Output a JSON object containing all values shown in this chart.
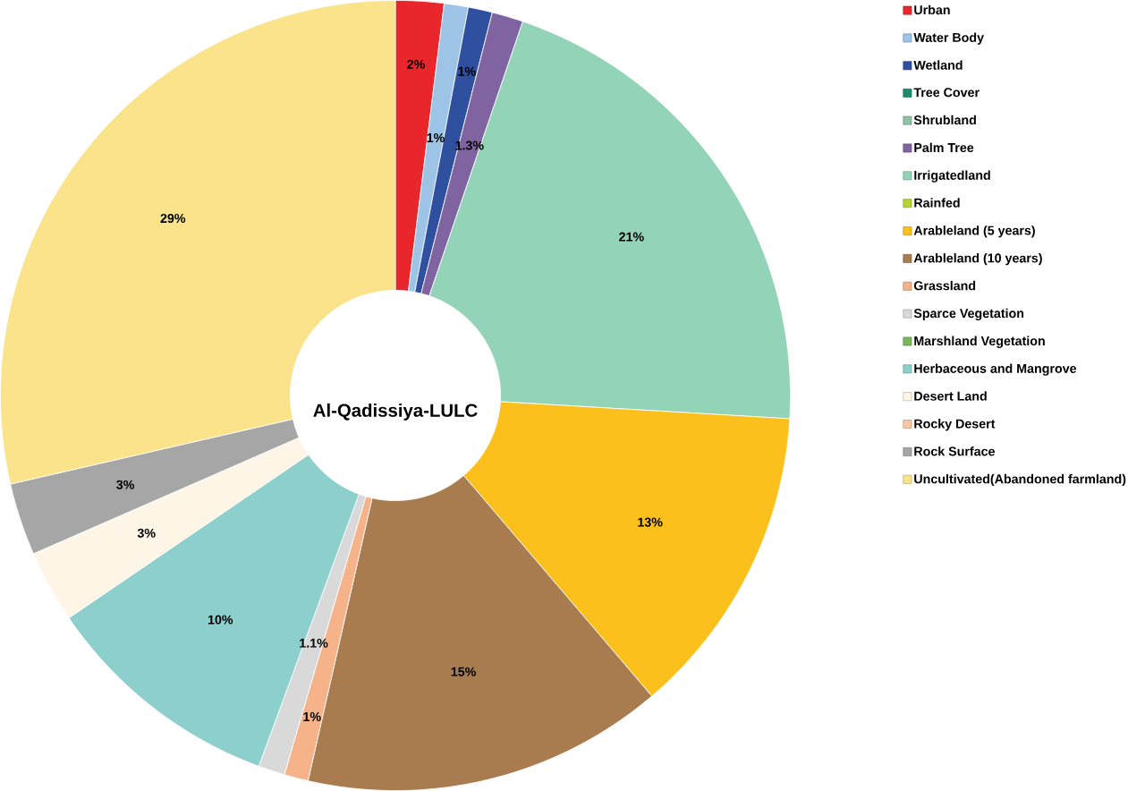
{
  "chart_data": {
    "type": "donut",
    "title": "Al-Qadissiya-LULC",
    "categories": [
      "Urban",
      "Water Body",
      "Wetland",
      "Tree Cover",
      "Shrubland",
      "Palm Tree",
      "Irrigatedland",
      "Rainfed",
      "Arableland (5 years)",
      "Arableland (10 years)",
      "Grassland",
      "Sparce Vegetation",
      "Marshland Vegetation",
      "Herbaceous and Mangrove",
      "Desert Land",
      "Rocky Desert",
      "Rock Surface",
      "Uncultivated(Abandoned farmland)"
    ],
    "values": [
      2,
      1,
      1,
      0,
      0,
      1.3,
      21,
      0,
      13,
      15,
      1,
      1.1,
      0,
      10,
      3,
      0,
      3,
      29
    ],
    "value_labels": [
      "2%",
      "1%",
      "1%",
      null,
      null,
      "1.3%",
      "21%",
      null,
      "13%",
      "15%",
      "1%",
      "1.1%",
      null,
      "10%",
      "3%",
      null,
      "3%",
      "29%"
    ],
    "colors": [
      "#e8262b",
      "#9dc3e6",
      "#2f4f9f",
      "#1e8a6e",
      "#8fc1a6",
      "#8064a2",
      "#93d3b8",
      "#b5d334",
      "#fbc01c",
      "#a97c50",
      "#f6b38a",
      "#d9d9d9",
      "#7ab85a",
      "#8ccfcc",
      "#fdf5e6",
      "#f8c6a0",
      "#a6a6a6",
      "#fae38a"
    ],
    "legend": "right"
  }
}
